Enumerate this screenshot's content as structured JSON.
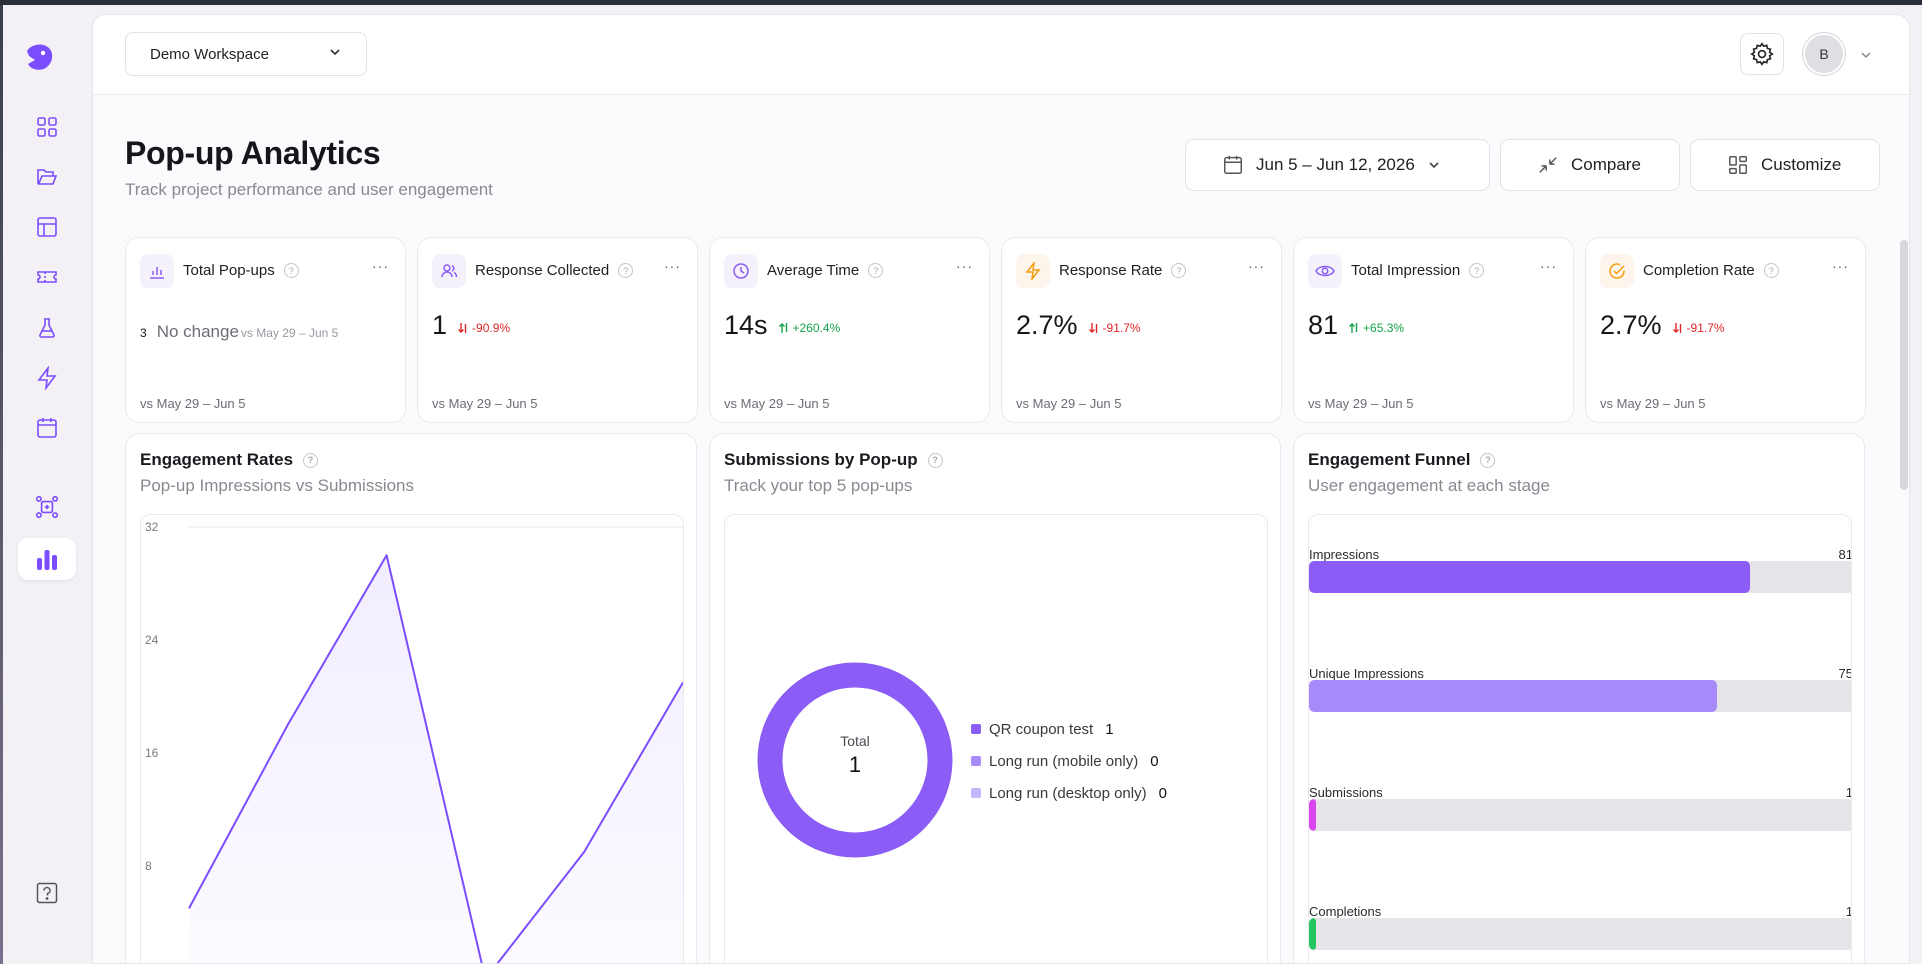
{
  "workspace": {
    "name": "Demo Workspace"
  },
  "user": {
    "initial": "B"
  },
  "page": {
    "title": "Pop-up Analytics",
    "subtitle": "Track project performance and user engagement"
  },
  "actions": {
    "date_range": "Jun 5 – Jun 12, 2026",
    "compare": "Compare",
    "customize": "Customize"
  },
  "rail": {
    "items": [
      "grid-icon",
      "folder-icon",
      "layout-icon",
      "ticket-icon",
      "flask-icon",
      "bolt-icon",
      "calendar-icon",
      "integrations-icon",
      "analytics-icon"
    ],
    "active": "analytics-icon",
    "help": "help-icon"
  },
  "stats": [
    {
      "title": "Total Pop-ups",
      "icon": "bar-chart-icon",
      "value": "3",
      "no_change": "No change",
      "no_change_ref": "vs May 29 – Jun 5",
      "foot": "vs May 29 – Jun 5"
    },
    {
      "title": "Response Collected",
      "icon": "users-icon",
      "value": "1",
      "delta": "-90.9%",
      "direction": "down",
      "foot": "vs May 29 – Jun 5"
    },
    {
      "title": "Average Time",
      "icon": "clock-icon",
      "value": "14s",
      "delta": "+260.4%",
      "direction": "up",
      "foot": "vs May 29 – Jun 5"
    },
    {
      "title": "Response Rate",
      "icon": "lightning-icon",
      "value": "2.7%",
      "delta": "-91.7%",
      "direction": "down",
      "foot": "vs May 29 – Jun 5"
    },
    {
      "title": "Total Impression",
      "icon": "eye-icon",
      "value": "81",
      "delta": "+65.3%",
      "direction": "up",
      "foot": "vs May 29 – Jun 5"
    },
    {
      "title": "Completion Rate",
      "icon": "check-circle-icon",
      "value": "2.7%",
      "delta": "-91.7%",
      "direction": "down",
      "foot": "vs May 29 – Jun 5"
    }
  ],
  "engagement": {
    "title": "Engagement Rates",
    "subtitle": "Pop-up Impressions vs Submissions"
  },
  "submissions": {
    "title": "Submissions by Pop-up",
    "subtitle": "Track your top 5 pop-ups",
    "total_label": "Total",
    "total_value": "1"
  },
  "funnel": {
    "title": "Engagement Funnel",
    "subtitle": "User engagement at each stage"
  },
  "chart_data": [
    {
      "type": "area",
      "title": "Engagement Rates",
      "subtitle": "Pop-up Impressions vs Submissions",
      "yticks": [
        8,
        16,
        24,
        32
      ],
      "ylim": [
        0,
        32
      ],
      "x": [
        0,
        1,
        2,
        3,
        4,
        5
      ],
      "series": [
        {
          "values": [
            5,
            18,
            30,
            0,
            9,
            21
          ],
          "color": "#7c4dff"
        }
      ],
      "grid": true
    },
    {
      "type": "pie",
      "title": "Submissions by Pop-up",
      "labels": [
        "QR coupon test",
        "Long run (mobile only)",
        "Long run (desktop only)"
      ],
      "values": [
        1,
        0,
        0
      ],
      "colors": [
        "#8b5cf6",
        "#a78bfa",
        "#c4b5fd"
      ]
    },
    {
      "type": "bar",
      "title": "Engagement Funnel",
      "categories": [
        "Impressions",
        "Unique Impressions",
        "Submissions",
        "Completions"
      ],
      "values": [
        81,
        75,
        1,
        1
      ],
      "colors": [
        "#8b5cf6",
        "#a78bfa",
        "#d946ef",
        "#22c55e"
      ],
      "xlim": [
        0,
        100
      ]
    }
  ]
}
